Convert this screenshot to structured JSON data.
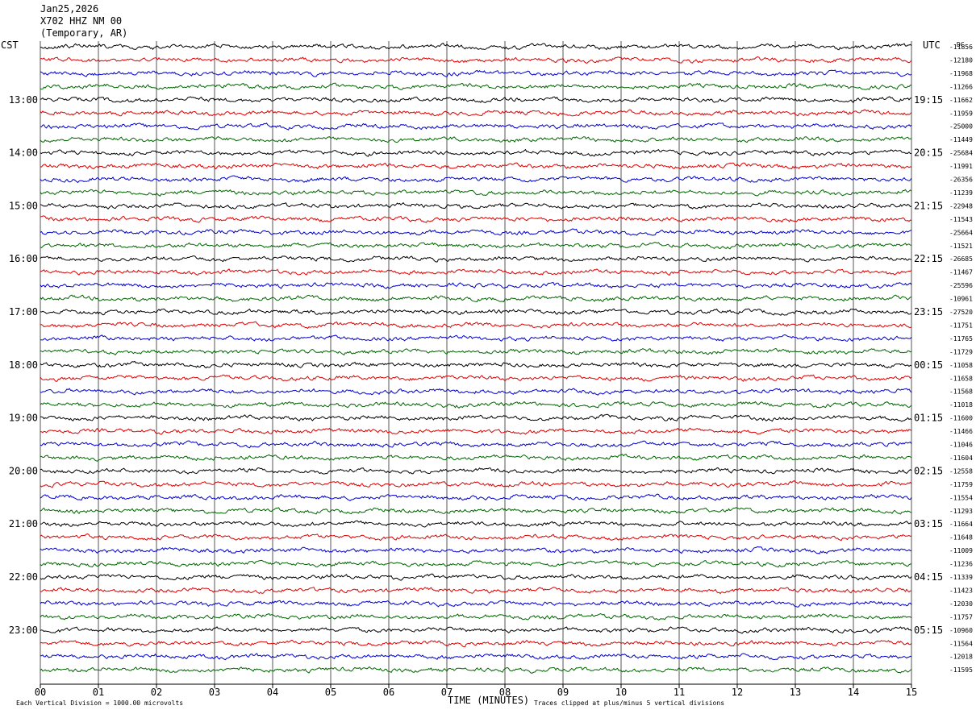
{
  "header": {
    "date": "Jan25,2026",
    "station": "X702 HHZ NM 00",
    "location": "(Temporary, AR)"
  },
  "left_tz": "CST",
  "right_tz": "UTC",
  "dc_label": "DC",
  "footer": {
    "scale_note": "Each Vertical Division = 1000.00 microvolts",
    "xlabel": "TIME (MINUTES)",
    "clip_note": "Traces clipped at plus/minus 5 vertical divisions"
  },
  "chart_data": {
    "type": "line",
    "title": "X702 HHZ NM 00",
    "xlabel": "TIME (MINUTES)",
    "ylabel": "",
    "xlim": [
      0,
      15
    ],
    "x_ticks": [
      "00",
      "01",
      "02",
      "03",
      "04",
      "05",
      "06",
      "07",
      "08",
      "09",
      "10",
      "11",
      "12",
      "13",
      "14",
      "15"
    ],
    "row_minutes": 15,
    "row_count": 48,
    "trace_colors": [
      "#000000",
      "#dd0000",
      "#0000cc",
      "#006600"
    ],
    "grid": true,
    "left_hour_labels": [
      {
        "row": 4,
        "label": "13:00"
      },
      {
        "row": 8,
        "label": "14:00"
      },
      {
        "row": 12,
        "label": "15:00"
      },
      {
        "row": 16,
        "label": "16:00"
      },
      {
        "row": 20,
        "label": "17:00"
      },
      {
        "row": 24,
        "label": "18:00"
      },
      {
        "row": 28,
        "label": "19:00"
      },
      {
        "row": 32,
        "label": "20:00"
      },
      {
        "row": 36,
        "label": "21:00"
      },
      {
        "row": 40,
        "label": "22:00"
      },
      {
        "row": 44,
        "label": "23:00"
      }
    ],
    "right_hour_labels": [
      {
        "row": 4,
        "label": "19:15"
      },
      {
        "row": 8,
        "label": "20:15"
      },
      {
        "row": 12,
        "label": "21:15"
      },
      {
        "row": 16,
        "label": "22:15"
      },
      {
        "row": 20,
        "label": "23:15"
      },
      {
        "row": 24,
        "label": "00:15"
      },
      {
        "row": 28,
        "label": "01:15"
      },
      {
        "row": 32,
        "label": "02:15"
      },
      {
        "row": 36,
        "label": "03:15"
      },
      {
        "row": 40,
        "label": "04:15"
      },
      {
        "row": 44,
        "label": "05:15"
      }
    ],
    "dc_values": [
      "-11856",
      "-12180",
      "-11968",
      "-11266",
      "-11662",
      "-11959",
      "-25000",
      "-11449",
      "-25684",
      "-11991",
      "-26356",
      "-11239",
      "-22948",
      "-11543",
      "-25664",
      "-11521",
      "-26685",
      "-11467",
      "-25596",
      "-10961",
      "-27520",
      "-11751",
      "-11765",
      "-11729",
      "-11058",
      "-11658",
      "-11568",
      "-11018",
      "-11600",
      "-11466",
      "-11046",
      "-11604",
      "-12558",
      "-11759",
      "-11554",
      "-11293",
      "-11664",
      "-11648",
      "-11009",
      "-11236",
      "-11339",
      "-11423",
      "-12030",
      "-11757",
      "-10960",
      "-11564",
      "-12018",
      "-11595"
    ]
  }
}
